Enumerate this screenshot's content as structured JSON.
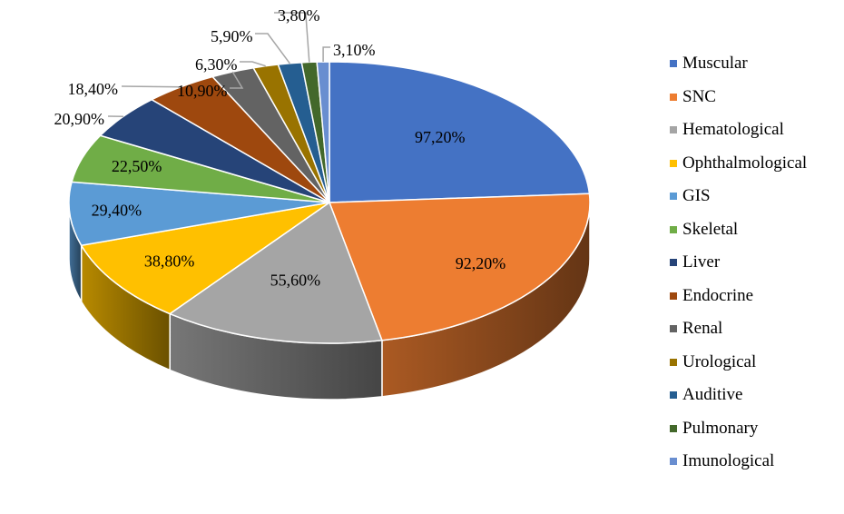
{
  "chart_data": {
    "type": "pie",
    "title": "",
    "legend_position": "right",
    "categories": [
      "Muscular",
      "SNC",
      "Hematological",
      "Ophthalmological",
      "GIS",
      "Skeletal",
      "Liver",
      "Endocrine",
      "Renal",
      "Urological",
      "Auditive",
      "Pulmonary",
      "Imunological"
    ],
    "values": [
      97.2,
      92.2,
      55.6,
      38.8,
      29.4,
      22.5,
      20.9,
      18.4,
      10.9,
      6.3,
      5.9,
      3.8,
      3.1
    ],
    "labels": [
      "97,20%",
      "92,20%",
      "55,60%",
      "38,80%",
      "29,40%",
      "22,50%",
      "20,90%",
      "18,40%",
      "10,90%",
      "6,30%",
      "5,90%",
      "3,80%",
      "3,10%"
    ],
    "colors": [
      "#4472C4",
      "#ED7D31",
      "#A5A5A5",
      "#FFC000",
      "#5B9BD5",
      "#70AD47",
      "#264478",
      "#9E480E",
      "#636363",
      "#997300",
      "#255E91",
      "#43682B",
      "#698ED0"
    ]
  }
}
